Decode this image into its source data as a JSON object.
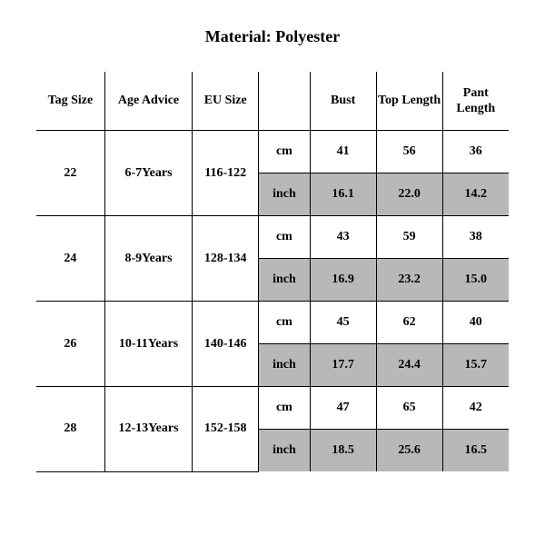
{
  "title": "Material: Polyester",
  "colors": {
    "background": "#ffffff",
    "text": "#000000",
    "border": "#000000",
    "shaded_cell": "#b8b8b8"
  },
  "typography": {
    "font_family": "Times New Roman",
    "title_fontsize_pt": 14,
    "cell_fontsize_pt": 11,
    "weight": "bold"
  },
  "table": {
    "type": "table",
    "columns": [
      "Tag Size",
      "Age Advice",
      "EU Size",
      "",
      "Bust",
      "Top Length",
      "Pant Length"
    ],
    "units": {
      "cm": "cm",
      "inch": "inch"
    },
    "rows": [
      {
        "tag_size": "22",
        "age_advice": "6-7Years",
        "eu_size": "116-122",
        "cm": {
          "bust": "41",
          "top_length": "56",
          "pant_length": "36"
        },
        "inch": {
          "bust": "16.1",
          "top_length": "22.0",
          "pant_length": "14.2"
        }
      },
      {
        "tag_size": "24",
        "age_advice": "8-9Years",
        "eu_size": "128-134",
        "cm": {
          "bust": "43",
          "top_length": "59",
          "pant_length": "38"
        },
        "inch": {
          "bust": "16.9",
          "top_length": "23.2",
          "pant_length": "15.0"
        }
      },
      {
        "tag_size": "26",
        "age_advice": "10-11Years",
        "eu_size": "140-146",
        "cm": {
          "bust": "45",
          "top_length": "62",
          "pant_length": "40"
        },
        "inch": {
          "bust": "17.7",
          "top_length": "24.4",
          "pant_length": "15.7"
        }
      },
      {
        "tag_size": "28",
        "age_advice": "12-13Years",
        "eu_size": "152-158",
        "cm": {
          "bust": "47",
          "top_length": "65",
          "pant_length": "42"
        },
        "inch": {
          "bust": "18.5",
          "top_length": "25.6",
          "pant_length": "16.5"
        }
      }
    ]
  }
}
